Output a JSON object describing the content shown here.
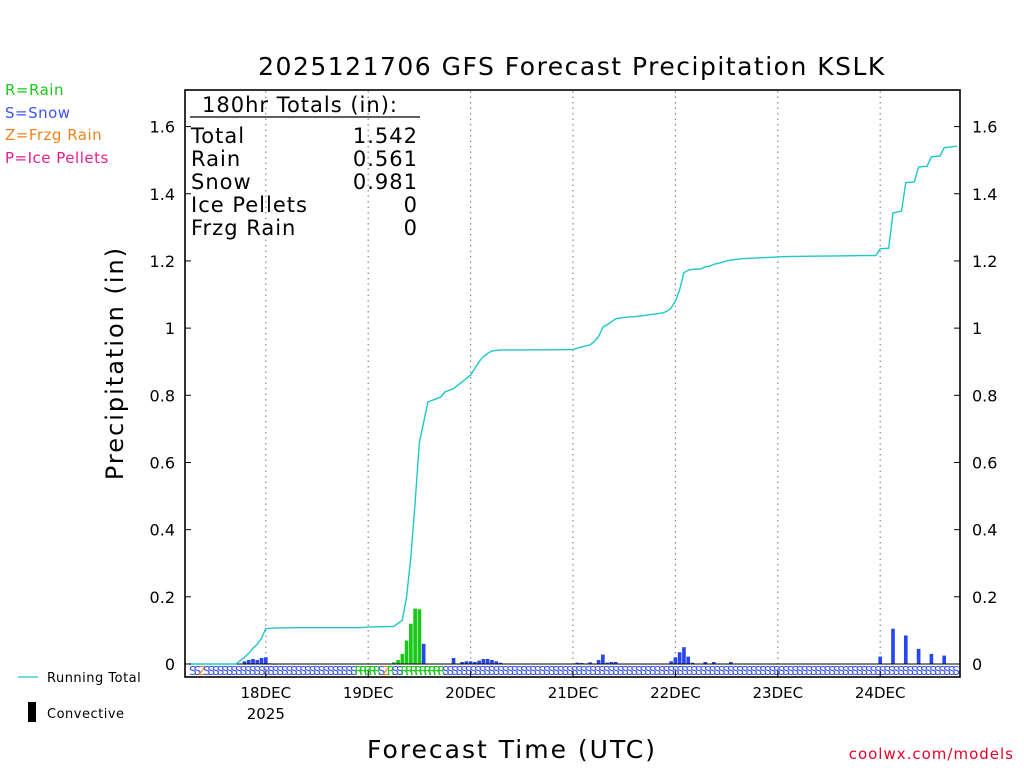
{
  "title": "2025121706 GFS Forecast Precipitation KSLK",
  "xlabel": "Forecast Time (UTC)",
  "ylabel": "Precipitation (in)",
  "credit": "coolwx.com/models",
  "legend_types": [
    {
      "label": "R=Rain",
      "color": "#19c819"
    },
    {
      "label": "S=Snow",
      "color": "#3c55f0"
    },
    {
      "label": "Z=Frzg Rain",
      "color": "#f0821e"
    },
    {
      "label": "P=Ice Pellets",
      "color": "#e61e8c"
    }
  ],
  "legend_bottom": {
    "running_total": "Running Total",
    "convective": "Convective"
  },
  "totals": {
    "header": "180hr Totals (in):",
    "rows": [
      {
        "label": "Total",
        "value": "1.542"
      },
      {
        "label": "Rain",
        "value": "0.561"
      },
      {
        "label": "Snow",
        "value": "0.981"
      },
      {
        "label": "Ice Pellets",
        "value": "0"
      },
      {
        "label": "Frzg Rain",
        "value": "0"
      }
    ]
  },
  "colors": {
    "rain": "#19c819",
    "snow": "#2846f0",
    "running": "#1ec8c8",
    "frzg": "#f0821e",
    "credit": "#e8002a"
  },
  "chart_data": {
    "type": "bar",
    "ylim": [
      0,
      1.7
    ],
    "y_ticks": [
      0,
      0.2,
      0.4,
      0.6,
      0.8,
      1,
      1.2,
      1.4,
      1.6
    ],
    "y_tick_labels": [
      "0",
      "0.2",
      "0.4",
      "0.6",
      "0.8",
      "1",
      "1.2",
      "1.4",
      "1.6"
    ],
    "x_range_hours": [
      0,
      180
    ],
    "x_ticks": [
      {
        "hour": 18,
        "label": "18DEC",
        "sublabel": "2025"
      },
      {
        "hour": 42,
        "label": "19DEC"
      },
      {
        "hour": 66,
        "label": "20DEC"
      },
      {
        "hour": 90,
        "label": "21DEC"
      },
      {
        "hour": 114,
        "label": "22DEC"
      },
      {
        "hour": 138,
        "label": "23DEC"
      },
      {
        "hour": 162,
        "label": "24DEC"
      }
    ],
    "series": [
      {
        "name": "Precipitation per period",
        "bars": [
          {
            "h": 13,
            "v": 0.008,
            "t": "S"
          },
          {
            "h": 14,
            "v": 0.012,
            "t": "S"
          },
          {
            "h": 15,
            "v": 0.015,
            "t": "S"
          },
          {
            "h": 16,
            "v": 0.012,
            "t": "S"
          },
          {
            "h": 17,
            "v": 0.018,
            "t": "S"
          },
          {
            "h": 18,
            "v": 0.02,
            "t": "S"
          },
          {
            "h": 19,
            "v": 0.002,
            "t": "S"
          },
          {
            "h": 20,
            "v": 0.001,
            "t": "S"
          },
          {
            "h": 48,
            "v": 0.005,
            "t": "R"
          },
          {
            "h": 49,
            "v": 0.012,
            "t": "R"
          },
          {
            "h": 50,
            "v": 0.03,
            "t": "R"
          },
          {
            "h": 51,
            "v": 0.07,
            "t": "R"
          },
          {
            "h": 52,
            "v": 0.12,
            "t": "R"
          },
          {
            "h": 53,
            "v": 0.165,
            "t": "R"
          },
          {
            "h": 54,
            "v": 0.163,
            "t": "R"
          },
          {
            "h": 55,
            "v": 0.06,
            "t": "S"
          },
          {
            "h": 62,
            "v": 0.018,
            "t": "S"
          },
          {
            "h": 64,
            "v": 0.006,
            "t": "S"
          },
          {
            "h": 65,
            "v": 0.008,
            "t": "S"
          },
          {
            "h": 66,
            "v": 0.008,
            "t": "S"
          },
          {
            "h": 67,
            "v": 0.006,
            "t": "S"
          },
          {
            "h": 68,
            "v": 0.01,
            "t": "S"
          },
          {
            "h": 69,
            "v": 0.015,
            "t": "S"
          },
          {
            "h": 70,
            "v": 0.015,
            "t": "S"
          },
          {
            "h": 71,
            "v": 0.012,
            "t": "S"
          },
          {
            "h": 72,
            "v": 0.008,
            "t": "S"
          },
          {
            "h": 73,
            "v": 0.004,
            "t": "S"
          },
          {
            "h": 91,
            "v": 0.004,
            "t": "S"
          },
          {
            "h": 92,
            "v": 0.003,
            "t": "S"
          },
          {
            "h": 94,
            "v": 0.005,
            "t": "S"
          },
          {
            "h": 96,
            "v": 0.012,
            "t": "S"
          },
          {
            "h": 97,
            "v": 0.028,
            "t": "S"
          },
          {
            "h": 98,
            "v": 0.004,
            "t": "S"
          },
          {
            "h": 99,
            "v": 0.006,
            "t": "S"
          },
          {
            "h": 100,
            "v": 0.006,
            "t": "S"
          },
          {
            "h": 113,
            "v": 0.008,
            "t": "S"
          },
          {
            "h": 114,
            "v": 0.02,
            "t": "S"
          },
          {
            "h": 115,
            "v": 0.035,
            "t": "S"
          },
          {
            "h": 116,
            "v": 0.05,
            "t": "S"
          },
          {
            "h": 117,
            "v": 0.022,
            "t": "S"
          },
          {
            "h": 118,
            "v": 0.004,
            "t": "S"
          },
          {
            "h": 121,
            "v": 0.006,
            "t": "S"
          },
          {
            "h": 123,
            "v": 0.006,
            "t": "S"
          },
          {
            "h": 127,
            "v": 0.006,
            "t": "S"
          },
          {
            "h": 162,
            "v": 0.022,
            "t": "S"
          },
          {
            "h": 165,
            "v": 0.105,
            "t": "S"
          },
          {
            "h": 168,
            "v": 0.085,
            "t": "S"
          },
          {
            "h": 171,
            "v": 0.045,
            "t": "S"
          },
          {
            "h": 174,
            "v": 0.03,
            "t": "S"
          },
          {
            "h": 177,
            "v": 0.025,
            "t": "S"
          }
        ]
      },
      {
        "name": "Running Total",
        "points": [
          [
            0,
            0
          ],
          [
            11,
            0
          ],
          [
            12,
            0.01
          ],
          [
            13,
            0.02
          ],
          [
            14,
            0.032
          ],
          [
            15,
            0.047
          ],
          [
            16,
            0.059
          ],
          [
            17,
            0.077
          ],
          [
            18,
            0.105
          ],
          [
            20,
            0.107
          ],
          [
            25,
            0.108
          ],
          [
            30,
            0.108
          ],
          [
            40,
            0.108
          ],
          [
            42,
            0.11
          ],
          [
            48,
            0.112
          ],
          [
            50,
            0.13
          ],
          [
            51,
            0.2
          ],
          [
            52,
            0.32
          ],
          [
            53,
            0.48
          ],
          [
            54,
            0.66
          ],
          [
            55,
            0.72
          ],
          [
            56,
            0.78
          ],
          [
            58,
            0.79
          ],
          [
            59,
            0.795
          ],
          [
            60,
            0.81
          ],
          [
            61,
            0.815
          ],
          [
            62,
            0.82
          ],
          [
            64,
            0.84
          ],
          [
            66,
            0.86
          ],
          [
            67,
            0.88
          ],
          [
            68,
            0.9
          ],
          [
            69,
            0.915
          ],
          [
            70,
            0.925
          ],
          [
            71,
            0.932
          ],
          [
            73,
            0.935
          ],
          [
            80,
            0.935
          ],
          [
            90,
            0.936
          ],
          [
            92,
            0.944
          ],
          [
            94,
            0.95
          ],
          [
            95,
            0.96
          ],
          [
            96,
            0.975
          ],
          [
            97,
            1.003
          ],
          [
            98,
            1.01
          ],
          [
            100,
            1.028
          ],
          [
            102,
            1.032
          ],
          [
            105,
            1.035
          ],
          [
            108,
            1.04
          ],
          [
            111,
            1.045
          ],
          [
            112,
            1.05
          ],
          [
            113,
            1.06
          ],
          [
            114,
            1.08
          ],
          [
            115,
            1.115
          ],
          [
            116,
            1.165
          ],
          [
            117,
            1.172
          ],
          [
            118,
            1.175
          ],
          [
            120,
            1.176
          ],
          [
            121,
            1.183
          ],
          [
            122,
            1.184
          ],
          [
            123,
            1.19
          ],
          [
            124,
            1.193
          ],
          [
            125,
            1.196
          ],
          [
            126,
            1.2
          ],
          [
            127,
            1.203
          ],
          [
            130,
            1.207
          ],
          [
            135,
            1.21
          ],
          [
            140,
            1.213
          ],
          [
            146,
            1.214
          ],
          [
            152,
            1.215
          ],
          [
            158,
            1.216
          ],
          [
            161,
            1.216
          ],
          [
            162,
            1.236
          ],
          [
            164,
            1.238
          ],
          [
            165,
            1.343
          ],
          [
            167,
            1.348
          ],
          [
            168,
            1.433
          ],
          [
            170,
            1.435
          ],
          [
            171,
            1.48
          ],
          [
            173,
            1.482
          ],
          [
            174,
            1.51
          ],
          [
            176,
            1.512
          ],
          [
            177,
            1.537
          ],
          [
            179,
            1.54
          ],
          [
            180,
            1.542
          ]
        ]
      }
    ],
    "type_strip": "SSZSSSSSSSSSSSSSSSSSSSSSSSSSSSSSSSSSRRRRRSZRSSRRRRRRRRRSSSSSSSSSSSSSSSSSSSSSSSSSSSSSSSSSSSSSSSSSSSSSSSSSSSSSSSSSSSSSSSSSSSSSSSSSSSSSSSSSSSSSSSSSSSSSSSSSSSSSSSSSSSSSSSS"
  }
}
